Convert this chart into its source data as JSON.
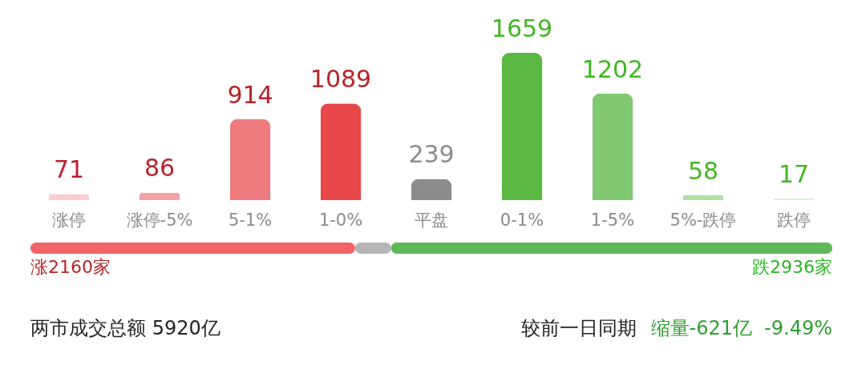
{
  "chart_data": [
    {
      "type": "bar",
      "categories": [
        "涨停",
        "涨停-5%",
        "5-1%",
        "1-0%",
        "平盘",
        "0-1%",
        "1-5%",
        "5%-跌停",
        "跌停"
      ],
      "values": [
        71,
        86,
        914,
        1089,
        239,
        1659,
        1202,
        58,
        17
      ],
      "colors": [
        "#f9cfd2",
        "#f2a3a8",
        "#ee7a7d",
        "#e84849",
        "#8c8c8c",
        "#5bb843",
        "#80c972",
        "#b2dfa6",
        "#d9efd3"
      ],
      "tick_labels": "x",
      "data_labels": true
    },
    {
      "type": "bar",
      "orientation": "horizontal",
      "stacked": true,
      "categories": [
        null
      ],
      "tick_labels": false,
      "series": [
        {
          "color": "#f06465",
          "values": [
            2160
          ],
          "value_labels": [
            "涨2160家"
          ]
        },
        {
          "color": "#b5b5b5",
          "values": [
            239
          ],
          "value_labels": [
            null
          ]
        },
        {
          "color": "#5fb85a",
          "values": [
            2936
          ],
          "value_labels": [
            "跌2936家"
          ]
        }
      ],
      "annotations": [
        "两市成交总额  5920亿",
        "较前一日同期",
        "缩量-621亿",
        "-9.49%"
      ]
    }
  ]
}
